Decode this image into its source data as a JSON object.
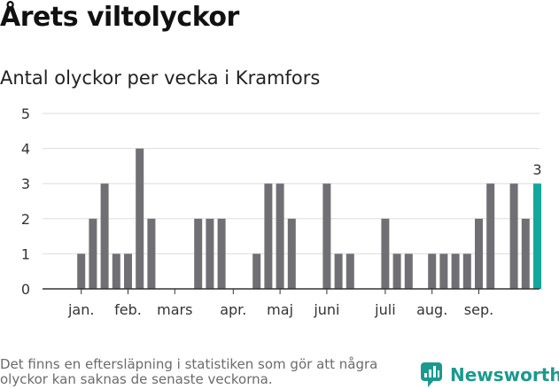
{
  "title": "Årets viltolyckor",
  "subtitle": "Antal olyckor per vecka i Kramfors",
  "footer": "Det finns en eftersläpning i statistiken som gör att några olyckor kan saknas de senaste veckorna.",
  "brand": {
    "name": "Newsworthy",
    "icon": "newsworthy-logo-icon"
  },
  "colors": {
    "bar": "#707074",
    "highlight": "#13a89b",
    "grid": "#dddddd",
    "axis": "#333333",
    "text": "#333333"
  },
  "chart_data": {
    "type": "bar",
    "title": "Antal olyckor per vecka i Kramfors",
    "xlabel": "",
    "ylabel": "",
    "ylim": [
      0,
      5
    ],
    "yticks": [
      0,
      1,
      2,
      3,
      4,
      5
    ],
    "grid": true,
    "weeks": [
      1,
      2,
      3,
      4,
      5,
      6,
      7,
      8,
      9,
      10,
      11,
      12,
      13,
      14,
      15,
      16,
      17,
      18,
      19,
      20,
      21,
      22,
      23,
      24,
      25,
      26,
      27,
      28,
      29,
      30,
      31,
      32,
      33,
      34,
      35,
      36,
      37,
      38,
      39,
      40
    ],
    "values": [
      0,
      1,
      2,
      3,
      1,
      1,
      4,
      2,
      0,
      0,
      0,
      2,
      2,
      2,
      0,
      0,
      1,
      3,
      3,
      2,
      0,
      0,
      3,
      1,
      1,
      0,
      0,
      2,
      1,
      1,
      0,
      1,
      1,
      1,
      1,
      2,
      3,
      0,
      3,
      2
    ],
    "highlight": {
      "week": 41,
      "value": 3,
      "label": "3"
    },
    "month_labels": [
      {
        "label": "jan.",
        "week": 2
      },
      {
        "label": "feb.",
        "week": 6
      },
      {
        "label": "mars",
        "week": 10
      },
      {
        "label": "apr.",
        "week": 15
      },
      {
        "label": "maj",
        "week": 19
      },
      {
        "label": "juni",
        "week": 23
      },
      {
        "label": "juli",
        "week": 28
      },
      {
        "label": "aug.",
        "week": 32
      },
      {
        "label": "sep.",
        "week": 36
      }
    ]
  }
}
